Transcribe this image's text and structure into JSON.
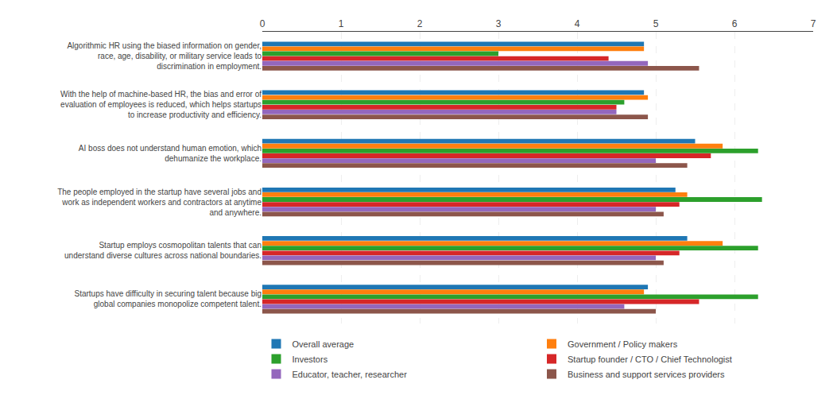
{
  "chart_data": {
    "type": "bar",
    "orientation": "horizontal",
    "categories": [
      "Algorithmic HR using the biased information on gender,\nrace, age, disability, or military service leads to\ndiscrimination in employment.",
      "With the help of machine-based HR, the bias and error of\nevaluation of employees is reduced, which helps startups\nto increase productivity and efficiency.",
      "AI boss does not understand human emotion, which\ndehumanize the workplace.",
      "The people employed in the startup have several jobs and\nwork as independent workers and contractors at anytime\nand anywhere.",
      "Startup employs cosmopolitan talents that can\nunderstand diverse cultures across national boundaries.",
      "Startups have difficulty in securing talent because big\nglobal companies monopolize competent talent."
    ],
    "series": [
      {
        "name": "Overall average",
        "values": [
          4.85,
          4.85,
          5.5,
          5.25,
          5.4,
          4.9
        ]
      },
      {
        "name": "Government / Policy makers",
        "values": [
          4.85,
          4.9,
          5.85,
          5.4,
          5.85,
          4.85
        ]
      },
      {
        "name": "Investors",
        "values": [
          3.0,
          4.6,
          6.3,
          6.35,
          6.3,
          6.3
        ]
      },
      {
        "name": "Startup founder / CTO / Chief Technologist",
        "values": [
          4.4,
          4.5,
          5.7,
          5.3,
          5.3,
          5.55
        ]
      },
      {
        "name": "Educator, teacher, researcher",
        "values": [
          4.9,
          4.5,
          5.0,
          5.0,
          5.0,
          4.6
        ]
      },
      {
        "name": "Business and support services providers",
        "values": [
          5.55,
          4.9,
          5.4,
          5.1,
          5.1,
          5.0
        ]
      }
    ],
    "xlim": [
      0,
      7
    ],
    "xticks": [
      0,
      1,
      2,
      3,
      4,
      5,
      6,
      7
    ],
    "grid": true,
    "legend": "bottom"
  }
}
